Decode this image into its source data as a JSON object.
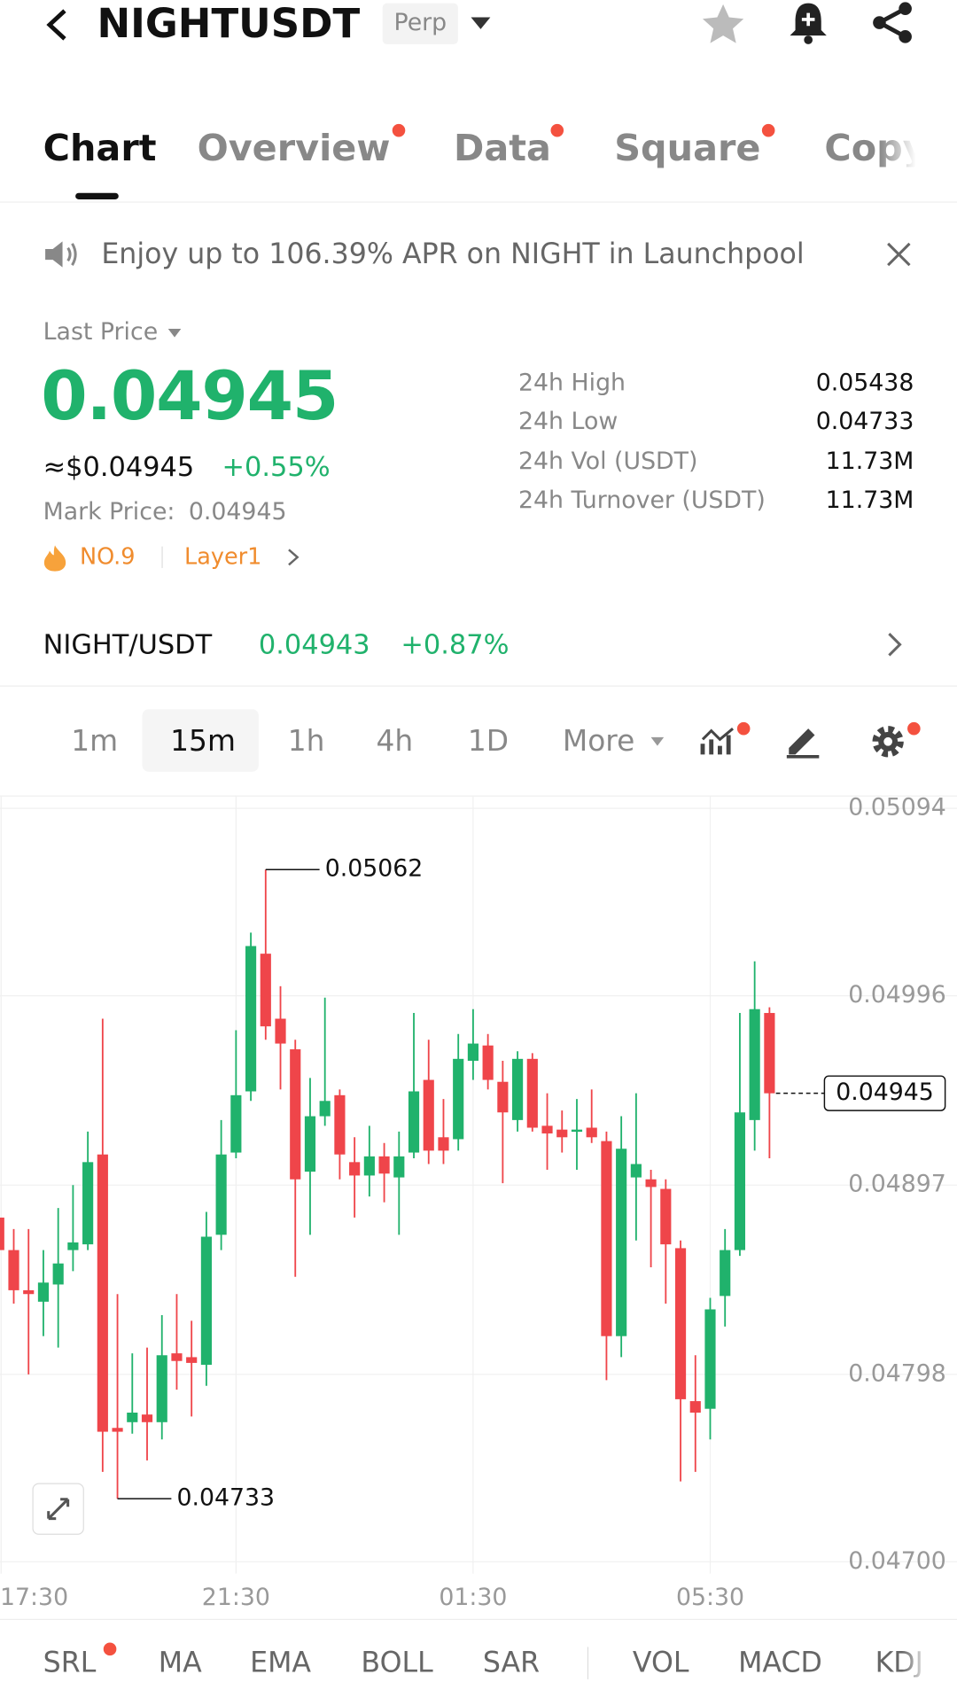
{
  "header": {
    "title": "NIGHTUSDT",
    "badge": "Perp"
  },
  "tabs": [
    "Chart",
    "Overview",
    "Data",
    "Square",
    "Copy"
  ],
  "banner": "Enjoy up to 106.39% APR on NIGHT in Launchpool",
  "price": {
    "label": "Last Price",
    "value": "0.04945",
    "usd": "≈$0.04945",
    "change": "+0.55%",
    "mark_label": "Mark Price:",
    "mark_value": "0.04945",
    "rank": "NO.9",
    "tag": "Layer1"
  },
  "stats": [
    {
      "label": "24h High",
      "value": "0.05438"
    },
    {
      "label": "24h Low",
      "value": "0.04733"
    },
    {
      "label": "24h Vol (USDT)",
      "value": "11.73M"
    },
    {
      "label": "24h Turnover (USDT)",
      "value": "11.73M"
    }
  ],
  "spot": {
    "pair": "NIGHT/USDT",
    "price": "0.04943",
    "change": "+0.87%"
  },
  "intervals": [
    "1m",
    "15m",
    "1h",
    "4h",
    "1D",
    "More"
  ],
  "indicators": [
    "SRL",
    "MA",
    "EMA",
    "BOLL",
    "SAR",
    "VOL",
    "MACD",
    "KDJ"
  ],
  "chart_data": {
    "type": "candlestick",
    "up_color": "#20b26c",
    "down_color": "#ef454a",
    "grid": true,
    "ylim": [
      0.047,
      0.05094
    ],
    "yticks": [
      0.05094,
      0.04996,
      0.04897,
      0.04798,
      {
        "value": 0.047,
        "label": "0.04700"
      }
    ],
    "categories": [
      "17:30",
      null,
      null,
      null,
      null,
      null,
      null,
      null,
      null,
      null,
      null,
      null,
      null,
      null,
      null,
      null,
      "21:30",
      null,
      null,
      null,
      null,
      null,
      null,
      null,
      null,
      null,
      null,
      null,
      null,
      null,
      null,
      null,
      "01:30",
      null,
      null,
      null,
      null,
      null,
      null,
      null,
      null,
      null,
      null,
      null,
      null,
      null,
      null,
      null,
      "05:30",
      null,
      null,
      null,
      null
    ],
    "open": [
      0.0488,
      0.04863,
      0.04842,
      0.04836,
      0.04845,
      0.04863,
      0.04866,
      0.04913,
      0.0477,
      0.04773,
      0.04777,
      0.04773,
      0.04809,
      0.04807,
      0.04803,
      0.04871,
      0.04914,
      0.04946,
      0.05018,
      0.04984,
      0.04968,
      0.04904,
      0.04933,
      0.04944,
      0.04909,
      0.04902,
      0.04912,
      0.04901,
      0.04914,
      0.04952,
      0.04922,
      0.04921,
      0.04962,
      0.0497,
      0.04951,
      0.04931,
      0.04963,
      0.04928,
      0.04926,
      0.04925,
      0.04927,
      0.0492,
      0.04818,
      0.04901,
      0.049,
      0.04895,
      0.04864,
      0.04784,
      0.0478,
      0.04839,
      0.04863,
      0.04931,
      0.04987
    ],
    "high": [
      0.04911,
      0.04874,
      0.04874,
      0.04863,
      0.04885,
      0.04897,
      0.04925,
      0.04984,
      0.0484,
      0.04809,
      0.04812,
      0.04829,
      0.0484,
      0.04826,
      0.04883,
      0.04931,
      0.04978,
      0.05029,
      0.05062,
      0.05001,
      0.04973,
      0.04953,
      0.04995,
      0.04947,
      0.04922,
      0.04928,
      0.04919,
      0.04925,
      0.04987,
      0.04973,
      0.04942,
      0.04976,
      0.04989,
      0.04976,
      0.04962,
      0.04967,
      0.04966,
      0.04945,
      0.04936,
      0.04942,
      0.04947,
      0.04925,
      0.04933,
      0.04945,
      0.04905,
      0.049,
      0.04868,
      0.04808,
      0.04838,
      0.04874,
      0.04987,
      0.05014,
      0.0499
    ],
    "low": [
      0.0484,
      0.04835,
      0.04798,
      0.04818,
      0.04812,
      0.04852,
      0.04863,
      0.04747,
      0.04733,
      0.04767,
      0.04753,
      0.04764,
      0.0479,
      0.04776,
      0.04792,
      0.04863,
      0.04911,
      0.04941,
      0.04973,
      0.04947,
      0.04849,
      0.04871,
      0.04928,
      0.049,
      0.0488,
      0.04891,
      0.04888,
      0.04871,
      0.04911,
      0.04908,
      0.04908,
      0.04915,
      0.04952,
      0.04947,
      0.04898,
      0.04925,
      0.04925,
      0.04905,
      0.04914,
      0.04905,
      0.04919,
      0.04795,
      0.04807,
      0.04868,
      0.04854,
      0.04835,
      0.04742,
      0.04747,
      0.04764,
      0.04823,
      0.0486,
      0.04915,
      0.04911
    ],
    "close": [
      0.04863,
      0.04842,
      0.0484,
      0.04846,
      0.04856,
      0.04867,
      0.04909,
      0.04768,
      0.04768,
      0.04778,
      0.04773,
      0.04808,
      0.04805,
      0.04804,
      0.0487,
      0.04913,
      0.04944,
      0.05022,
      0.0498,
      0.04971,
      0.049,
      0.04933,
      0.04941,
      0.04913,
      0.04902,
      0.04912,
      0.04903,
      0.04912,
      0.04946,
      0.04915,
      0.04915,
      0.04963,
      0.04971,
      0.04952,
      0.04935,
      0.04963,
      0.04927,
      0.04924,
      0.04922,
      0.04926,
      0.04922,
      0.04818,
      0.04916,
      0.04908,
      0.04896,
      0.04866,
      0.04785,
      0.04778,
      0.04832,
      0.04863,
      0.04935,
      0.04989,
      0.04945
    ]
  }
}
